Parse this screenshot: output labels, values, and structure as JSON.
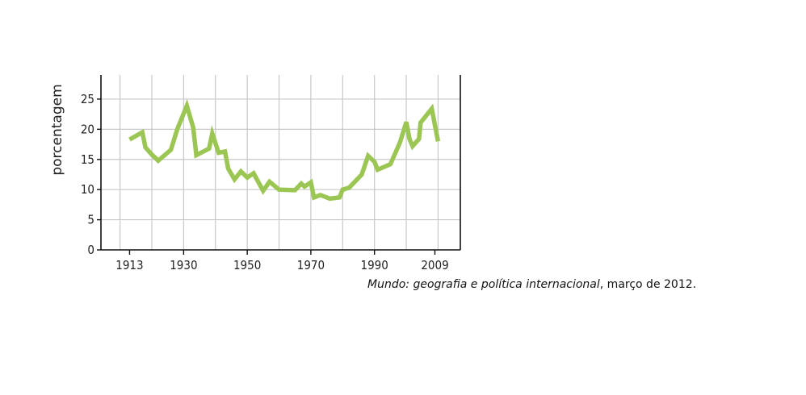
{
  "chart_data": {
    "type": "line",
    "title": "",
    "xlabel": "",
    "ylabel": "porcentagem",
    "x_ticks": [
      "1913",
      "1930",
      "1950",
      "1970",
      "1990",
      "2009"
    ],
    "x_tick_values": [
      1913,
      1930,
      1950,
      1970,
      1990,
      2009
    ],
    "y_ticks": [
      "0",
      "5",
      "10",
      "15",
      "20",
      "25"
    ],
    "xlim": [
      1904,
      2017
    ],
    "ylim": [
      0,
      29
    ],
    "grid": true,
    "series": [
      {
        "color": "#9cc653",
        "points": [
          [
            1913,
            18.3
          ],
          [
            1917,
            19.5
          ],
          [
            1918,
            17.0
          ],
          [
            1920,
            15.8
          ],
          [
            1922,
            14.8
          ],
          [
            1926,
            16.6
          ],
          [
            1928,
            20.0
          ],
          [
            1931,
            23.9
          ],
          [
            1933,
            20.3
          ],
          [
            1934,
            15.7
          ],
          [
            1938,
            16.8
          ],
          [
            1939,
            19.3
          ],
          [
            1941,
            16.1
          ],
          [
            1943,
            16.3
          ],
          [
            1944,
            13.5
          ],
          [
            1946,
            11.7
          ],
          [
            1948,
            13.0
          ],
          [
            1950,
            12.0
          ],
          [
            1952,
            12.7
          ],
          [
            1955,
            9.8
          ],
          [
            1957,
            11.3
          ],
          [
            1960,
            10.0
          ],
          [
            1965,
            9.9
          ],
          [
            1967,
            11.0
          ],
          [
            1968,
            10.5
          ],
          [
            1970,
            11.2
          ],
          [
            1971,
            8.7
          ],
          [
            1973,
            9.1
          ],
          [
            1976,
            8.5
          ],
          [
            1979,
            8.7
          ],
          [
            1980,
            10.0
          ],
          [
            1982,
            10.3
          ],
          [
            1986,
            12.5
          ],
          [
            1988,
            15.6
          ],
          [
            1990,
            14.6
          ],
          [
            1991,
            13.3
          ],
          [
            1995,
            14.2
          ],
          [
            1998,
            17.8
          ],
          [
            2000,
            21.2
          ],
          [
            2001,
            18.4
          ],
          [
            2002,
            17.2
          ],
          [
            2004,
            18.4
          ],
          [
            2004.5,
            21.1
          ],
          [
            2008,
            23.4
          ],
          [
            2010,
            18.0
          ]
        ]
      }
    ]
  },
  "source": {
    "italic": "Mundo: geografia e política internacional",
    "rest": ", março de 2012."
  }
}
